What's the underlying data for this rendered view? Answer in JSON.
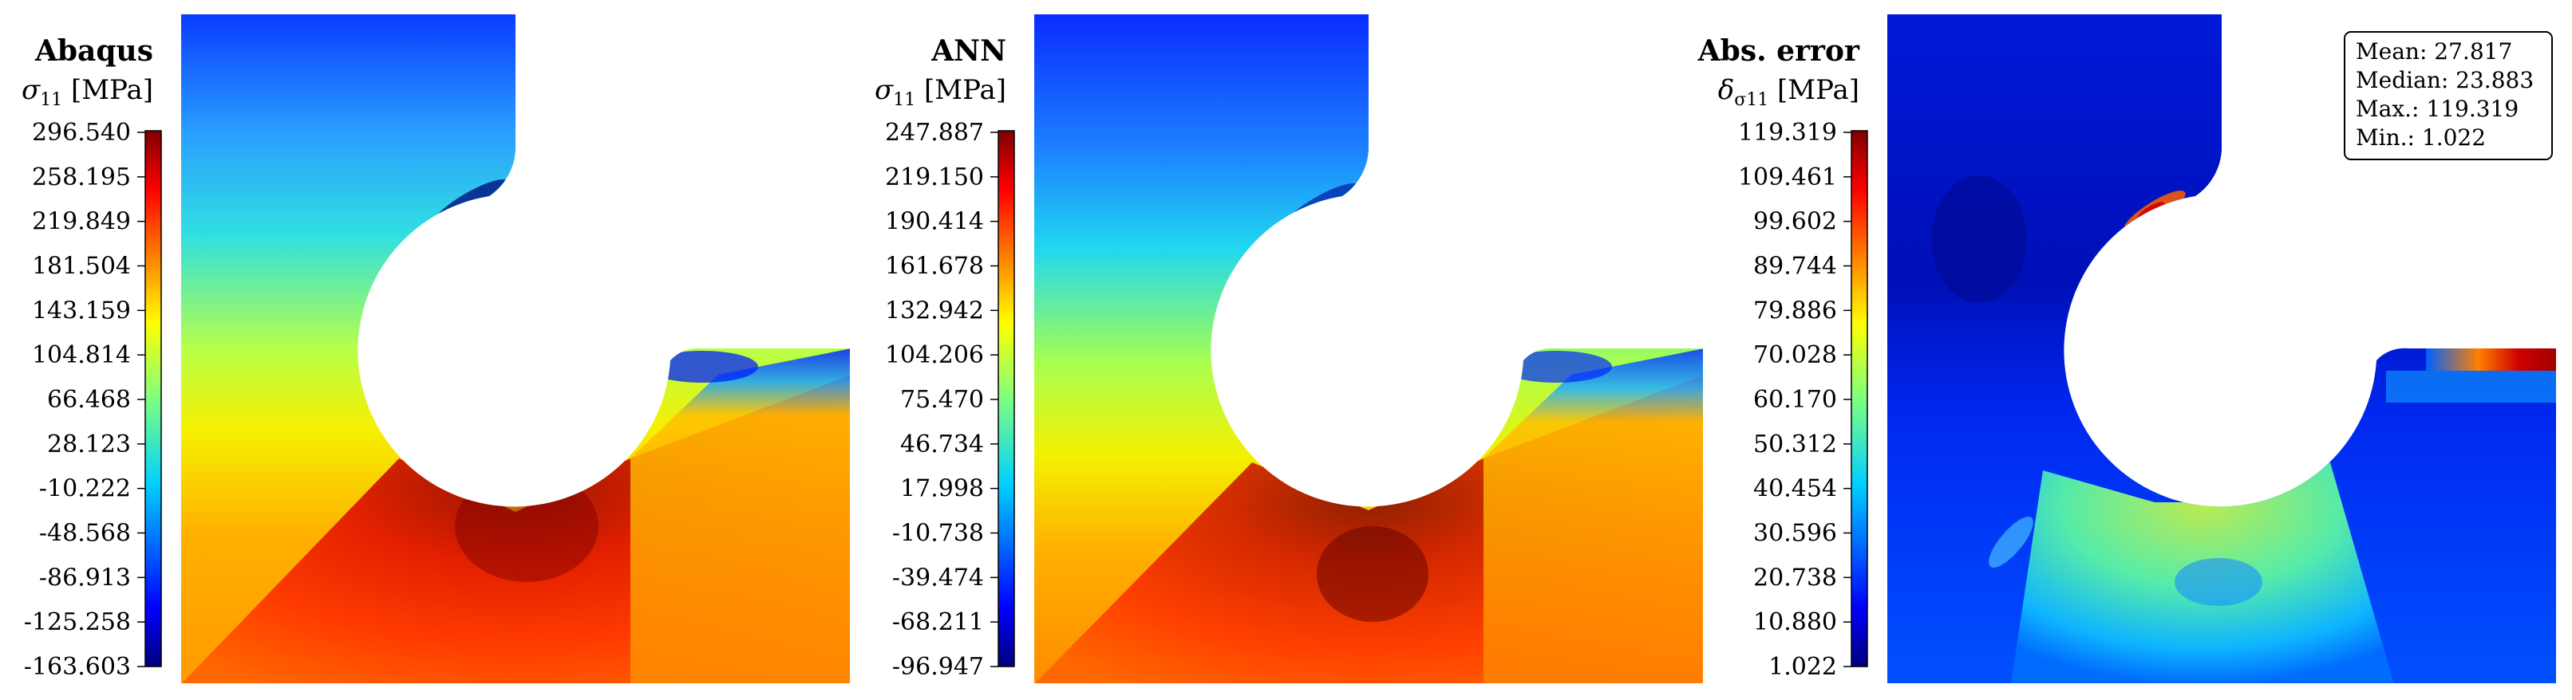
{
  "panels": [
    {
      "title": "Abaqus",
      "quantity": "σ",
      "quantity_sub": "11",
      "unit": "[MPa]",
      "ticks": [
        "296.540",
        "258.195",
        "219.849",
        "181.504",
        "143.159",
        "104.814",
        "66.468",
        "28.123",
        "-10.222",
        "-48.568",
        "-86.913",
        "-125.258",
        "-163.603"
      ]
    },
    {
      "title": "ANN",
      "quantity": "σ",
      "quantity_sub": "11",
      "unit": "[MPa]",
      "ticks": [
        "247.887",
        "219.150",
        "190.414",
        "161.678",
        "132.942",
        "104.206",
        "75.470",
        "46.734",
        "17.998",
        "-10.738",
        "-39.474",
        "-68.211",
        "-96.947"
      ]
    },
    {
      "title": "Abs. error",
      "quantity": "δ",
      "quantity_sub": "σ11",
      "unit": "[MPa]",
      "ticks": [
        "119.319",
        "109.461",
        "99.602",
        "89.744",
        "79.886",
        "70.028",
        "60.170",
        "50.312",
        "40.454",
        "30.596",
        "20.738",
        "10.880",
        "1.022"
      ]
    }
  ],
  "stats": {
    "mean": "Mean: 27.817",
    "median": "Median: 23.883",
    "max": "Max.: 119.319",
    "min": "Min.: 1.022"
  },
  "colormap": {
    "name": "jet",
    "stops": [
      "#00007f",
      "#0000ff",
      "#007fff",
      "#00ffff",
      "#7fff7f",
      "#ffff00",
      "#ff7f00",
      "#ff0000",
      "#7f0000"
    ]
  }
}
